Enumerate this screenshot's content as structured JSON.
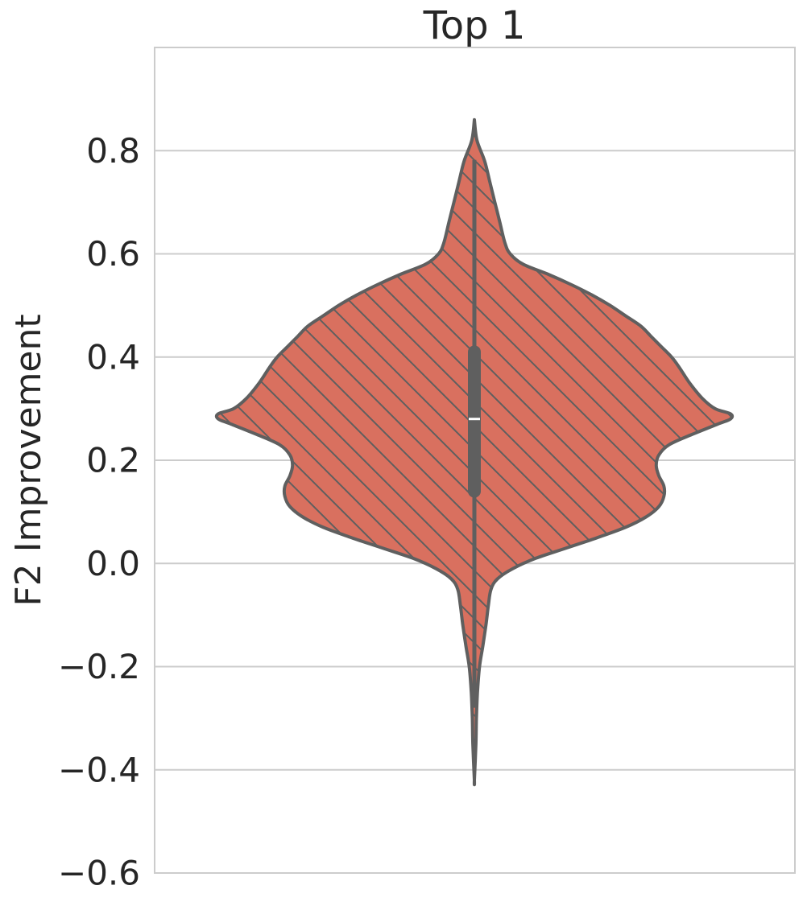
{
  "chart_data": {
    "type": "violin",
    "title": "Top 1",
    "xlabel": "",
    "ylabel": "F2 Improvement",
    "ylim": [
      -0.6,
      1.0
    ],
    "yticks": [
      -0.6,
      -0.4,
      -0.2,
      0.0,
      0.2,
      0.4,
      0.6,
      0.8
    ],
    "ytick_labels": [
      "−0.6",
      "−0.4",
      "−0.2",
      "0.0",
      "0.2",
      "0.4",
      "0.6",
      "0.8"
    ],
    "grid": true,
    "fill_color": "#d9705f",
    "edge_color": "#5f5f5f",
    "hatch": "diagonal",
    "series": [
      {
        "min": -0.42,
        "max": 0.86,
        "q1": 0.14,
        "median": 0.28,
        "q3": 0.41,
        "density": [
          [
            0.86,
            0.0
          ],
          [
            0.82,
            0.01
          ],
          [
            0.78,
            0.04
          ],
          [
            0.74,
            0.06
          ],
          [
            0.7,
            0.08
          ],
          [
            0.66,
            0.1
          ],
          [
            0.62,
            0.12
          ],
          [
            0.6,
            0.14
          ],
          [
            0.58,
            0.19
          ],
          [
            0.56,
            0.29
          ],
          [
            0.54,
            0.38
          ],
          [
            0.52,
            0.46
          ],
          [
            0.5,
            0.53
          ],
          [
            0.48,
            0.59
          ],
          [
            0.46,
            0.65
          ],
          [
            0.44,
            0.69
          ],
          [
            0.42,
            0.73
          ],
          [
            0.4,
            0.77
          ],
          [
            0.38,
            0.8
          ],
          [
            0.35,
            0.84
          ],
          [
            0.32,
            0.89
          ],
          [
            0.3,
            0.94
          ],
          [
            0.29,
            1.0
          ],
          [
            0.28,
            1.0
          ],
          [
            0.27,
            0.95
          ],
          [
            0.25,
            0.85
          ],
          [
            0.23,
            0.76
          ],
          [
            0.21,
            0.72
          ],
          [
            0.19,
            0.71
          ],
          [
            0.17,
            0.72
          ],
          [
            0.15,
            0.74
          ],
          [
            0.13,
            0.74
          ],
          [
            0.11,
            0.72
          ],
          [
            0.09,
            0.67
          ],
          [
            0.07,
            0.59
          ],
          [
            0.05,
            0.48
          ],
          [
            0.03,
            0.36
          ],
          [
            0.01,
            0.24
          ],
          [
            -0.01,
            0.15
          ],
          [
            -0.03,
            0.09
          ],
          [
            -0.05,
            0.065
          ],
          [
            -0.08,
            0.055
          ],
          [
            -0.12,
            0.045
          ],
          [
            -0.16,
            0.033
          ],
          [
            -0.2,
            0.02
          ],
          [
            -0.25,
            0.012
          ],
          [
            -0.3,
            0.008
          ],
          [
            -0.35,
            0.006
          ],
          [
            -0.42,
            0.0
          ]
        ]
      }
    ]
  }
}
